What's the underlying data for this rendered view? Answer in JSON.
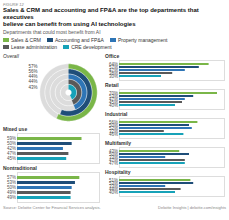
{
  "title": "Sales & CRM and accounting and FP&A are the top departments that executives\nbelieve can benefit from using AI technologies",
  "subtitle": "Departments that could most benefit from AI",
  "annotations": [
    "FIGURE 12",
    "Source: Deloitte Center for Financial Services analysis.",
    "Deloitte Insights | deloitte.com/insights"
  ],
  "chart_data": [
    {
      "type": "radial",
      "title": "Overall",
      "categories": [
        "Sales & CRM",
        "Accounting and FP&A",
        "Property management",
        "Lease administration",
        "CRE development"
      ],
      "values": [
        57,
        56,
        44,
        44,
        43
      ],
      "value_labels": [
        "57%",
        "56%",
        "44%",
        "44%",
        "43%"
      ],
      "colors": [
        "#7ab648",
        "#1f4e79",
        "#2e75b6",
        "#595959",
        "#17a2b8"
      ],
      "xlim": [
        0,
        100
      ],
      "data_labels": true,
      "tick_labels": false,
      "legend": "top"
    },
    {
      "type": "bar",
      "orientation": "horizontal",
      "title": "Office",
      "categories": [
        "Sales & CRM",
        "Accounting and FP&A",
        "Property management",
        "Lease administration",
        "CRE development"
      ],
      "values": [
        64,
        57,
        47,
        38,
        30
      ],
      "value_labels": [
        "64%",
        "57%",
        "47%",
        "38%",
        "30%"
      ],
      "colors": [
        "#7ab648",
        "#1f4e79",
        "#2e75b6",
        "#595959",
        "#17a2b8"
      ],
      "xlim": [
        0,
        75
      ],
      "data_labels": true,
      "tick_labels": false
    },
    {
      "type": "bar",
      "orientation": "horizontal",
      "title": "Retail",
      "categories": [
        "Sales & CRM",
        "Accounting and FP&A",
        "Property management",
        "Lease administration",
        "CRE development"
      ],
      "values": [
        70,
        53,
        47,
        45,
        40
      ],
      "value_labels": [
        "70%",
        "53%",
        "47%",
        "45%",
        "40%"
      ],
      "colors": [
        "#7ab648",
        "#1f4e79",
        "#2e75b6",
        "#595959",
        "#17a2b8"
      ],
      "xlim": [
        0,
        75
      ],
      "data_labels": true,
      "tick_labels": false
    },
    {
      "type": "bar",
      "orientation": "horizontal",
      "title": "Industrial",
      "categories": [
        "Sales & CRM",
        "Accounting and FP&A",
        "Property management",
        "Lease administration",
        "CRE development"
      ],
      "values": [
        56,
        50,
        52,
        32,
        46
      ],
      "value_labels": [
        "56%",
        "50%",
        "52%",
        "32%",
        "46%"
      ],
      "colors": [
        "#7ab648",
        "#1f4e79",
        "#2e75b6",
        "#595959",
        "#17a2b8"
      ],
      "xlim": [
        0,
        75
      ],
      "data_labels": true,
      "tick_labels": false
    },
    {
      "type": "bar",
      "orientation": "horizontal",
      "title": "Multifamily",
      "categories": [
        "Sales & CRM",
        "Accounting and FP&A",
        "Property management",
        "Lease administration",
        "CRE development"
      ],
      "values": [
        43,
        50,
        33,
        47,
        47
      ],
      "value_labels": [
        "43%",
        "50%",
        "33%",
        "47%",
        "47%"
      ],
      "colors": [
        "#7ab648",
        "#1f4e79",
        "#2e75b6",
        "#595959",
        "#17a2b8"
      ],
      "xlim": [
        0,
        75
      ],
      "data_labels": true,
      "tick_labels": false
    },
    {
      "type": "bar",
      "orientation": "horizontal",
      "title": "Hospitality",
      "categories": [
        "Sales & CRM",
        "Accounting and FP&A",
        "Property management",
        "Lease administration",
        "CRE development"
      ],
      "values": [
        51,
        53,
        33,
        44,
        40
      ],
      "value_labels": [
        "51%",
        "53%",
        "33%",
        "44%",
        "40%"
      ],
      "colors": [
        "#7ab648",
        "#1f4e79",
        "#2e75b6",
        "#595959",
        "#17a2b8"
      ],
      "xlim": [
        0,
        75
      ],
      "data_labels": true,
      "tick_labels": false
    },
    {
      "type": "bar",
      "orientation": "horizontal",
      "title": "Mixed use",
      "categories": [
        "Sales & CRM",
        "Accounting and FP&A",
        "Property management",
        "Lease administration",
        "CRE development"
      ],
      "values": [
        59,
        50,
        42,
        47,
        45
      ],
      "value_labels": [
        "59%",
        "50%",
        "42%",
        "47%",
        "45%"
      ],
      "colors": [
        "#7ab648",
        "#1f4e79",
        "#2e75b6",
        "#595959",
        "#17a2b8"
      ],
      "xlim": [
        0,
        75
      ],
      "data_labels": true,
      "tick_labels": false
    },
    {
      "type": "bar",
      "orientation": "horizontal",
      "title": "Nontraditional",
      "categories": [
        "Sales & CRM",
        "Accounting and FP&A",
        "Property management",
        "Lease administration",
        "CRE development"
      ],
      "values": [
        57,
        53,
        50,
        49,
        49
      ],
      "value_labels": [
        "57%",
        "53%",
        "50%",
        "49%",
        "49%"
      ],
      "colors": [
        "#7ab648",
        "#1f4e79",
        "#2e75b6",
        "#595959",
        "#17a2b8"
      ],
      "xlim": [
        0,
        75
      ],
      "data_labels": true,
      "tick_labels": false
    }
  ]
}
